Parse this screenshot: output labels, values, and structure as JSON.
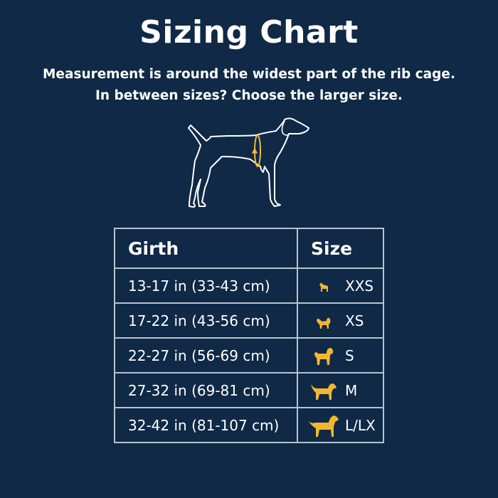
{
  "title": "Sizing Chart",
  "subtitle_line1": "Measurement is around the widest part of the rib cage.",
  "subtitle_line2": "In between sizes? Choose the larger size.",
  "colors": {
    "background": "#0f2946",
    "accent": "#f2b731",
    "border": "#b8c3cf"
  },
  "table": {
    "headers": [
      "Girth",
      "Size"
    ],
    "rows": [
      {
        "girth": "13-17 in (33-43 cm)",
        "size": "XXS",
        "icon": "chihuahua-icon"
      },
      {
        "girth": "17-22 in (43-56 cm)",
        "size": "XS",
        "icon": "small-fluffy-dog-icon"
      },
      {
        "girth": "22-27 in (56-69 cm)",
        "size": "S",
        "icon": "poodle-icon"
      },
      {
        "girth": "27-32 in (69-81 cm)",
        "size": "M",
        "icon": "medium-dog-icon"
      },
      {
        "girth": "32-42 in (81-107 cm)",
        "size": "L/LX",
        "icon": "large-dog-icon"
      }
    ]
  }
}
